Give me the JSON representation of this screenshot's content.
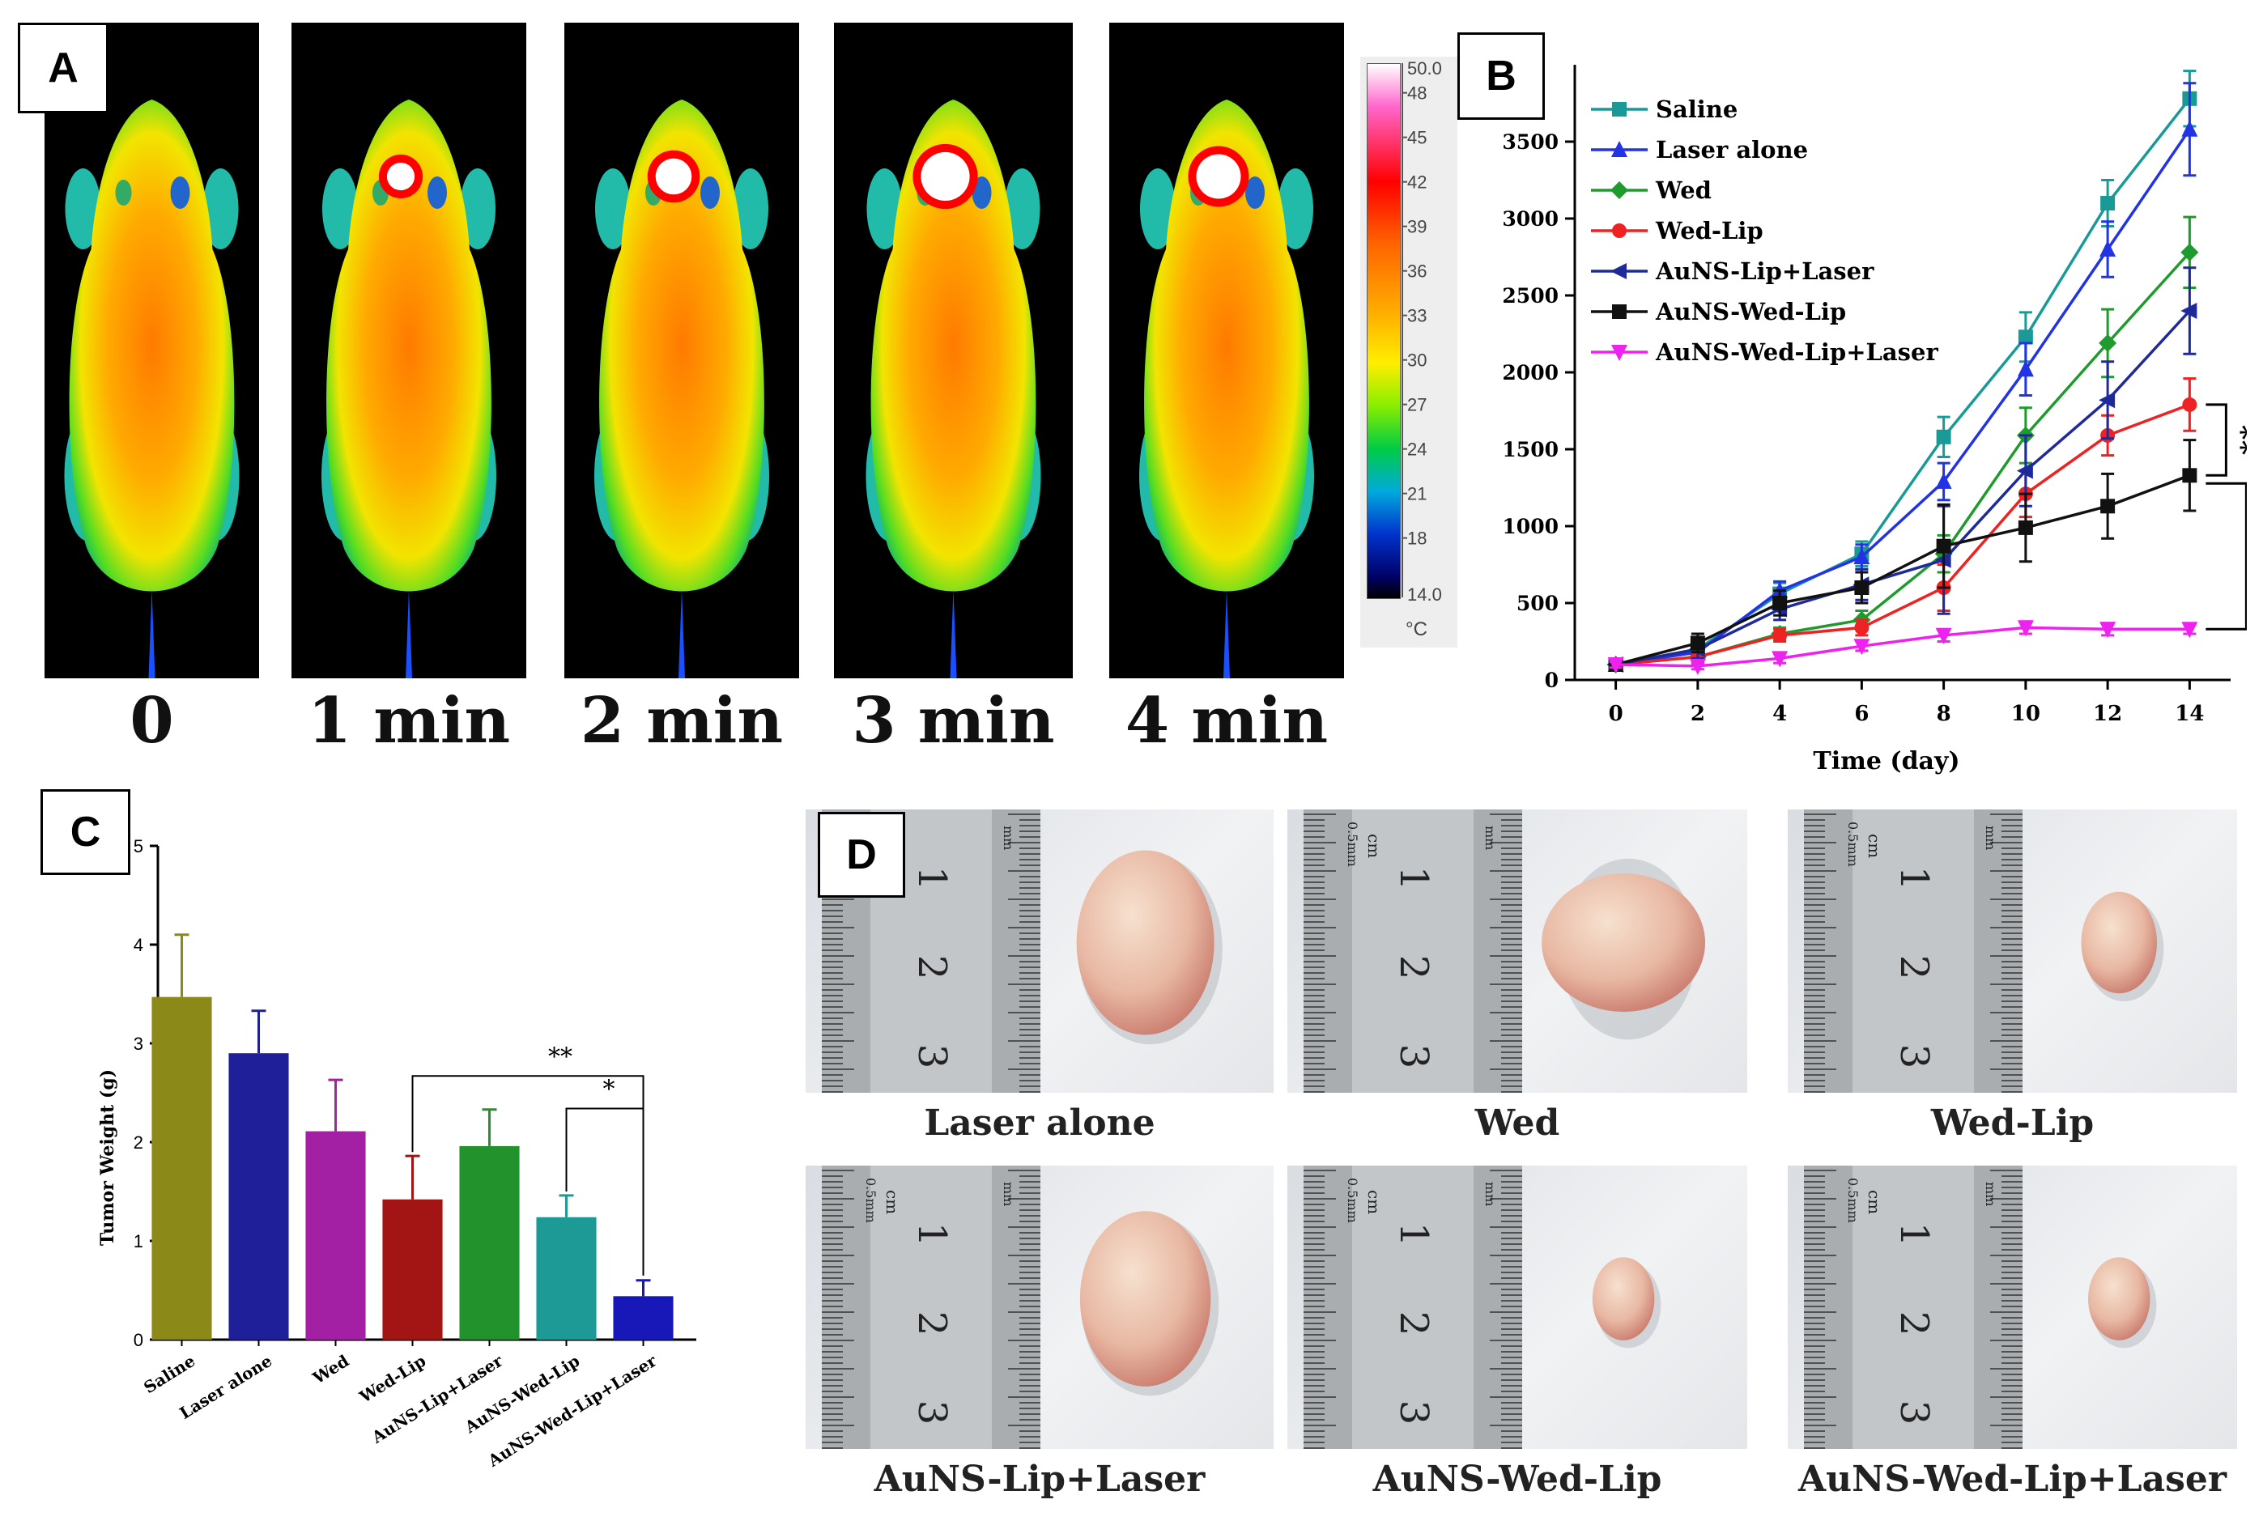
{
  "panelA": {
    "letter": "A",
    "time_labels": [
      "0",
      "1 min",
      "2 min",
      "3 min",
      "4 min"
    ],
    "hotspot_intensity": [
      0,
      0.35,
      0.55,
      0.85,
      0.75
    ],
    "colorbar": {
      "max_label": "50.0",
      "min_label": "14.0",
      "tick_labels": [
        "48",
        "45",
        "42",
        "39",
        "36",
        "33",
        "30",
        "27",
        "24",
        "21",
        "18"
      ],
      "unit": "°C"
    }
  },
  "panelB": {
    "letter": "B",
    "significance": [
      "**",
      "*"
    ]
  },
  "panelC": {
    "letter": "C",
    "significance": [
      "**",
      "*"
    ]
  },
  "panelD": {
    "letter": "D",
    "captions": [
      "Laser alone",
      "Wed",
      "Wed-Lip",
      "AuNS-Lip+Laser",
      "AuNS-Wed-Lip",
      "AuNS-Wed-Lip+Laser"
    ],
    "tumor_scale": [
      1.0,
      0.95,
      0.55,
      0.95,
      0.45,
      0.45
    ],
    "ruler_labels": {
      "unit_cm": "cm",
      "unit_mm": "mm",
      "half_mm": "0.5mm",
      "numbers": [
        "1",
        "2",
        "3"
      ]
    }
  },
  "chart_data": [
    {
      "type": "line",
      "xlabel": "Time (day)",
      "ylabel": "",
      "x": [
        0,
        2,
        4,
        6,
        8,
        10,
        12,
        14
      ],
      "xlim": [
        -1,
        15
      ],
      "ylim": [
        0,
        4000
      ],
      "x_ticks": [
        0,
        2,
        4,
        6,
        8,
        10,
        12,
        14
      ],
      "y_ticks": [
        0,
        500,
        1000,
        1500,
        2000,
        2500,
        3000,
        3500
      ],
      "legend_position": "top-left",
      "series": [
        {
          "name": "Saline",
          "color": "#1a9a96",
          "marker": "square",
          "values": [
            100,
            200,
            560,
            820,
            1580,
            2230,
            3100,
            3780
          ],
          "errors": [
            30,
            60,
            70,
            80,
            130,
            160,
            150,
            180
          ]
        },
        {
          "name": "Laser alone",
          "color": "#2233e6",
          "marker": "triangle-up",
          "values": [
            100,
            180,
            580,
            800,
            1290,
            2020,
            2800,
            3580
          ],
          "errors": [
            30,
            60,
            60,
            80,
            120,
            170,
            180,
            300
          ]
        },
        {
          "name": "Wed",
          "color": "#1f9a2c",
          "marker": "diamond",
          "values": [
            100,
            150,
            300,
            390,
            820,
            1590,
            2190,
            2780
          ],
          "errors": [
            30,
            50,
            40,
            60,
            120,
            180,
            220,
            230
          ]
        },
        {
          "name": "Wed-Lip",
          "color": "#ee2222",
          "marker": "circle",
          "values": [
            100,
            150,
            290,
            340,
            600,
            1210,
            1590,
            1790
          ],
          "errors": [
            30,
            40,
            40,
            50,
            150,
            150,
            130,
            170
          ]
        },
        {
          "name": "AuNS-Lip+Laser",
          "color": "#1f2a9a",
          "marker": "triangle-left",
          "values": [
            100,
            200,
            460,
            620,
            780,
            1360,
            1820,
            2400
          ],
          "errors": [
            30,
            60,
            70,
            100,
            350,
            230,
            250,
            280
          ]
        },
        {
          "name": "AuNS-Wed-Lip",
          "color": "#111111",
          "marker": "square",
          "values": [
            100,
            240,
            500,
            600,
            870,
            990,
            1130,
            1330
          ],
          "errors": [
            30,
            60,
            80,
            100,
            270,
            220,
            210,
            230
          ]
        },
        {
          "name": "AuNS-Wed-Lip+Laser",
          "color": "#ee22ee",
          "marker": "triangle-down",
          "values": [
            100,
            90,
            140,
            220,
            290,
            340,
            330,
            330
          ],
          "errors": [
            20,
            20,
            30,
            30,
            40,
            40,
            40,
            30
          ]
        }
      ]
    },
    {
      "type": "bar",
      "xlabel": "",
      "ylabel": "Tumor Weight (g)",
      "ylim": [
        0,
        5
      ],
      "y_ticks": [
        0,
        1,
        2,
        3,
        4,
        5
      ],
      "categories": [
        "Saline",
        "Laser alone",
        "Wed",
        "Wed-Lip",
        "AuNS-Lip+Laser",
        "AuNS-Wed-Lip",
        "AuNS-Wed-Lip+Laser"
      ],
      "values": [
        3.47,
        2.9,
        2.11,
        1.42,
        1.96,
        1.24,
        0.44
      ],
      "errors": [
        0.63,
        0.43,
        0.52,
        0.44,
        0.37,
        0.22,
        0.16
      ],
      "colors": [
        "#8b8a19",
        "#1f1f9a",
        "#a31fa3",
        "#a31414",
        "#21922c",
        "#1e9a96",
        "#1818b8"
      ]
    }
  ]
}
